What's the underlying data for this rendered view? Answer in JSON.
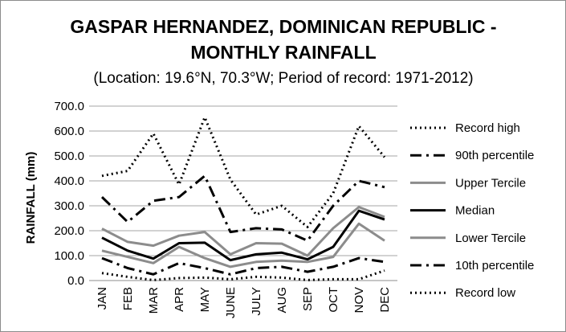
{
  "chart_data": {
    "type": "line",
    "title_lines": [
      "GASPAR HERNANDEZ, DOMINICAN REPUBLIC -",
      "MONTHLY RAINFALL"
    ],
    "subtitle": "(Location: 19.6°N, 70.3°W; Period of record: 1971-2012)",
    "ylabel": "RAINFALL (mm)",
    "xlabel": "",
    "categories": [
      "JAN",
      "FEB",
      "MAR",
      "APR",
      "MAY",
      "JUNE",
      "JULY",
      "AUG",
      "SEP",
      "OCT",
      "NOV",
      "DEC"
    ],
    "ylim": [
      0,
      700
    ],
    "yticks": [
      "0.0",
      "100.0",
      "200.0",
      "300.0",
      "400.0",
      "500.0",
      "600.0",
      "700.0"
    ],
    "grid": "horizontal",
    "legend_position": "right",
    "series": [
      {
        "name": "Record high",
        "color": "#000000",
        "style": "dotted",
        "values": [
          420,
          440,
          590,
          385,
          655,
          405,
          265,
          300,
          215,
          350,
          620,
          495
        ]
      },
      {
        "name": "90th percentile",
        "color": "#000000",
        "style": "dashdot",
        "values": [
          335,
          235,
          320,
          335,
          420,
          195,
          210,
          205,
          160,
          300,
          400,
          375
        ]
      },
      {
        "name": "Upper Tercile",
        "color": "#8c8c8c",
        "style": "solid",
        "values": [
          208,
          155,
          140,
          180,
          195,
          105,
          150,
          148,
          100,
          210,
          295,
          255
        ]
      },
      {
        "name": "Median",
        "color": "#000000",
        "style": "solid",
        "values": [
          172,
          120,
          88,
          150,
          152,
          82,
          105,
          112,
          85,
          135,
          280,
          245
        ]
      },
      {
        "name": "Lower Tercile",
        "color": "#8c8c8c",
        "style": "solid",
        "values": [
          120,
          95,
          70,
          135,
          90,
          55,
          75,
          80,
          75,
          95,
          228,
          160
        ]
      },
      {
        "name": "10th percentile",
        "color": "#000000",
        "style": "dashdot",
        "values": [
          90,
          50,
          25,
          70,
          50,
          25,
          50,
          55,
          35,
          55,
          90,
          75
        ]
      },
      {
        "name": "Record low",
        "color": "#000000",
        "style": "dotted",
        "values": [
          30,
          15,
          2,
          10,
          12,
          5,
          15,
          12,
          2,
          5,
          5,
          40
        ]
      }
    ]
  }
}
